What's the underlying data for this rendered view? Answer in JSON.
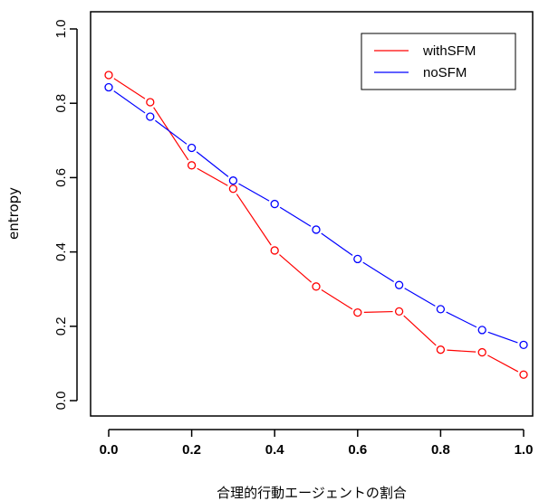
{
  "chart_data": {
    "type": "line",
    "title": "",
    "xlabel": "合理的行動エージェントの割合",
    "ylabel": "entropy",
    "xlim": [
      0,
      1
    ],
    "ylim": [
      0,
      1
    ],
    "x_ticks": [
      "0.0",
      "0.2",
      "0.4",
      "0.6",
      "0.8",
      "1.0"
    ],
    "y_ticks": [
      "0.0",
      "0.2",
      "0.4",
      "0.6",
      "0.8",
      "1.0"
    ],
    "grid": false,
    "legend_position": "top-right",
    "x": [
      0.0,
      0.1,
      0.2,
      0.3,
      0.4,
      0.5,
      0.6,
      0.7,
      0.8,
      0.9,
      1.0
    ],
    "series": [
      {
        "name": "withSFM",
        "color": "#ff0000",
        "values": [
          0.876,
          0.803,
          0.633,
          0.57,
          0.404,
          0.307,
          0.237,
          0.24,
          0.137,
          0.13,
          0.07
        ]
      },
      {
        "name": "noSFM",
        "color": "#0000ff",
        "values": [
          0.843,
          0.764,
          0.68,
          0.592,
          0.529,
          0.46,
          0.381,
          0.311,
          0.246,
          0.19,
          0.15
        ]
      }
    ]
  }
}
